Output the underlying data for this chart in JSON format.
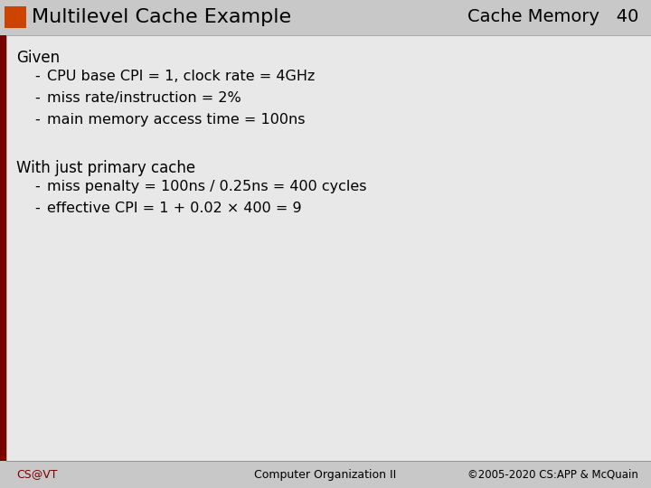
{
  "title": "Multilevel Cache Example",
  "subtitle_left": "Cache Memory",
  "subtitle_number": "40",
  "slide_bg": "#c8c8c8",
  "content_bg": "#e8e8e8",
  "header_bg": "#d0d0d0",
  "dark_red": "#7a0000",
  "orange_sq": "#cc4400",
  "title_color": "#000000",
  "body_color": "#000000",
  "footer_left": "CS@VT",
  "footer_center": "Computer Organization II",
  "footer_right": "©2005-2020 CS:APP & McQuain",
  "given_label": "Given",
  "given_items": [
    "CPU base CPI = 1, clock rate = 4GHz",
    "miss rate/instruction = 2%",
    "main memory access time = 100ns"
  ],
  "with_label": "With just primary cache",
  "with_items": [
    "miss penalty = 100ns / 0.25ns = 400 cycles",
    "effective CPI = 1 + 0.02 × 400 = 9"
  ]
}
